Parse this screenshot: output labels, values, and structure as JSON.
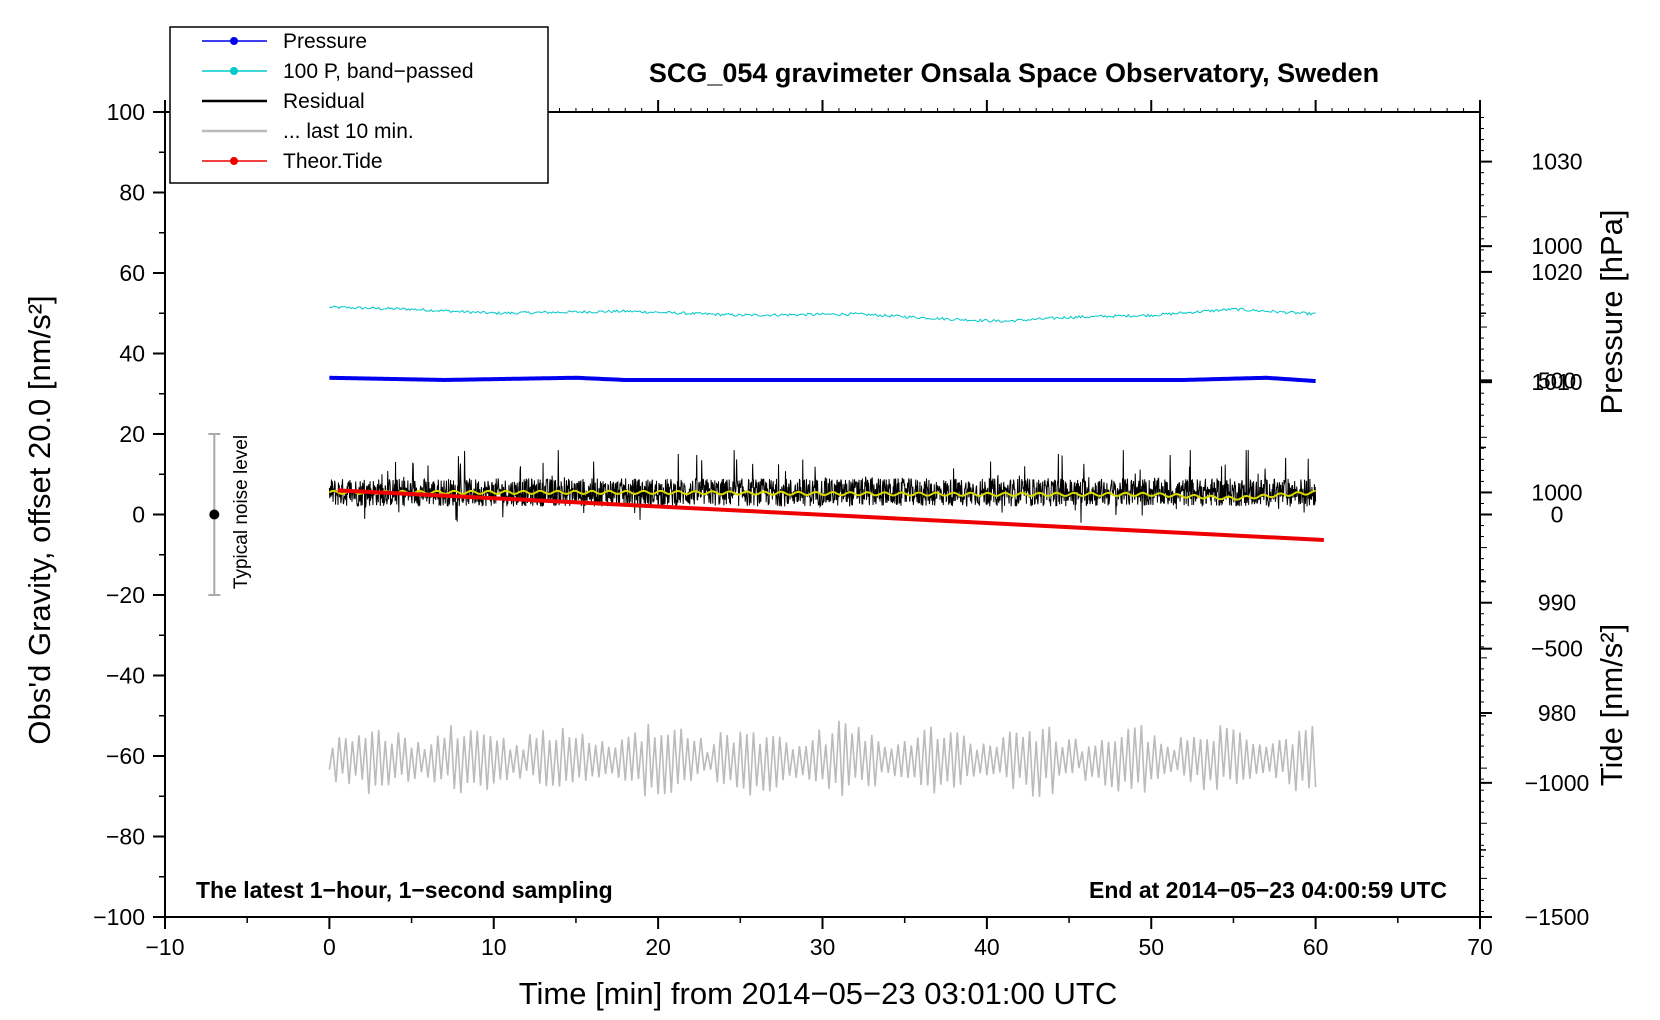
{
  "chart_data": {
    "type": "line",
    "title": "SCG_054 gravimeter Onsala Space Observatory, Sweden",
    "xlabel": "Time [min] from 2014−05−23 03:01:00 UTC",
    "ylabel_left": "Obs'd Gravity, offset 20.0 [nm/s²]",
    "ylabel_right_top": "Pressure [hPa]",
    "ylabel_right_bottom": "Tide [nm/s²]",
    "xlim": [
      -10,
      70
    ],
    "ylim": [
      -100,
      100
    ],
    "pressure_axis_lim": [
      961.5,
      1034.5
    ],
    "tide_axis_lim": [
      -1500,
      1500
    ],
    "x_ticks": [
      "−10",
      "0",
      "10",
      "20",
      "30",
      "40",
      "50",
      "60",
      "70"
    ],
    "x_tick_values": [
      -10,
      0,
      10,
      20,
      30,
      40,
      50,
      60,
      70
    ],
    "y_ticks": [
      "100",
      "80",
      "60",
      "40",
      "20",
      "0",
      "−20",
      "−40",
      "−60",
      "−80",
      "−100"
    ],
    "y_tick_values": [
      100,
      80,
      60,
      40,
      20,
      0,
      -20,
      -40,
      -60,
      -80,
      -100
    ],
    "pressure_ticks": [
      "1030",
      "1020",
      "1010",
      "1000",
      "990",
      "980"
    ],
    "pressure_tick_values": [
      1030,
      1020,
      1010,
      1000,
      990,
      980
    ],
    "tide_ticks": [
      "1000",
      "500",
      "0",
      "−500",
      "−1000",
      "−1500"
    ],
    "tide_tick_values": [
      1000,
      500,
      0,
      -500,
      -1000,
      -1500
    ],
    "legend": [
      {
        "label": "Pressure",
        "color": "#0000ee",
        "marker": "dot"
      },
      {
        "label": "100 P, band−passed",
        "color": "#00c8c8",
        "marker": "dot"
      },
      {
        "label": "Residual",
        "color": "#000000",
        "marker": "none"
      },
      {
        "label": "... last 10 min.",
        "color": "#bbbbbb",
        "marker": "none"
      },
      {
        "label": "Theor.Tide",
        "color": "#ee0000",
        "marker": "dot"
      }
    ],
    "series": [
      {
        "name": "Pressure",
        "color": "#0000ee",
        "axis": "pressure",
        "x": [
          0,
          7,
          15,
          18,
          40,
          52,
          57,
          60
        ],
        "values": [
          1010.4,
          1010.2,
          1010.4,
          1010.2,
          1010.2,
          1010.2,
          1010.4,
          1010.1
        ]
      },
      {
        "name": "100 P, band−passed",
        "color": "#00c8c8",
        "axis": "left",
        "x": [
          0,
          5,
          10,
          18,
          25,
          32,
          38,
          41,
          45,
          50,
          55,
          60
        ],
        "values": [
          51.5,
          51.0,
          50.0,
          50.5,
          49.5,
          49.8,
          48.5,
          48.0,
          49.0,
          49.5,
          51.0,
          49.8
        ]
      },
      {
        "name": "Residual",
        "color": "#000000",
        "axis": "left",
        "x_range": [
          0,
          60
        ],
        "mean": 5.5,
        "spread": [
          -5,
          16
        ]
      },
      {
        "name": "Residual (smoothed)",
        "color": "#d8d800",
        "axis": "left",
        "x": [
          0,
          10,
          20,
          30,
          40,
          50,
          55,
          60
        ],
        "values": [
          5.5,
          5.5,
          5.5,
          5.2,
          5.0,
          5.0,
          4.0,
          5.5
        ]
      },
      {
        "name": "... last 10 min.",
        "color": "#bbbbbb",
        "axis": "left",
        "x_range": [
          0,
          60
        ],
        "mean": -61,
        "spread": [
          -71,
          -51
        ]
      },
      {
        "name": "Theor.Tide",
        "color": "#ee0000",
        "axis": "tide",
        "x": [
          0.5,
          60.5
        ],
        "values": [
          90,
          -95
        ]
      }
    ],
    "annotations": {
      "bottom_left": "The latest 1−hour, 1−second sampling",
      "bottom_right": "End at 2014−05−23 04:00:59 UTC",
      "noise_label": "Typical noise level",
      "noise_bar": {
        "x": -7,
        "center": 0,
        "low": -20,
        "high": 20
      }
    },
    "legend_position": "top-left",
    "grid": false
  }
}
